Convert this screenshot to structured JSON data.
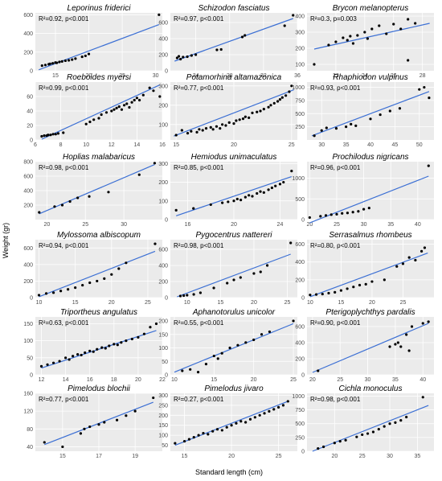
{
  "figure": {
    "xlabel": "Standard length (cm)",
    "ylabel": "Weight (gr)"
  },
  "colors": {
    "panel_bg": "#ebebeb",
    "grid": "#ffffff",
    "points": "#000000",
    "fit_line": "#3b6fd4"
  },
  "chart_data": [
    {
      "type": "scatter",
      "title": "Leporinus friderici",
      "stat": "R²=0.92, p<0.001",
      "xlim": [
        12,
        31
      ],
      "ylim": [
        0,
        620
      ],
      "xticks": [
        15,
        20,
        25,
        30
      ],
      "yticks": [
        0,
        200,
        400,
        600
      ],
      "x": [
        13,
        13.5,
        14,
        14.2,
        14.6,
        15,
        15.2,
        15.6,
        16,
        16.5,
        17,
        17.5,
        18,
        19,
        19.5,
        20,
        30.5
      ],
      "y": [
        55,
        62,
        70,
        75,
        80,
        88,
        85,
        95,
        100,
        108,
        112,
        120,
        130,
        150,
        160,
        180,
        600
      ],
      "fit": [
        [
          12.5,
          10
        ],
        [
          30.5,
          495
        ]
      ]
    },
    {
      "type": "scatter",
      "title": "Schizodon fasciatus",
      "stat": "R²=0.97, p<0.001",
      "xlim": [
        21,
        36
      ],
      "ylim": [
        0,
        720
      ],
      "xticks": [
        24,
        28,
        32,
        36
      ],
      "yticks": [
        0,
        200,
        400,
        600
      ],
      "x": [
        21.8,
        22,
        22.2,
        22.5,
        23,
        23.5,
        24,
        26.5,
        27,
        29.5,
        29.8,
        34.5,
        35.5
      ],
      "y": [
        160,
        180,
        145,
        170,
        175,
        190,
        200,
        260,
        265,
        420,
        440,
        560,
        690
      ],
      "fit": [
        [
          21.5,
          120
        ],
        [
          35.5,
          650
        ]
      ]
    },
    {
      "type": "scatter",
      "title": "Brycon melanopterus",
      "stat": "R²=0.3, p=0.003",
      "xlim": [
        20,
        28.8
      ],
      "ylim": [
        60,
        420
      ],
      "xticks": [
        22,
        24,
        26,
        28
      ],
      "yticks": [
        100,
        200,
        300,
        400
      ],
      "x": [
        20.5,
        21.5,
        22,
        22.5,
        22.8,
        23,
        23.2,
        23.5,
        24,
        24.2,
        24.5,
        25,
        25.5,
        26,
        26.5,
        27,
        27,
        27.5
      ],
      "y": [
        100,
        220,
        240,
        265,
        250,
        275,
        230,
        280,
        300,
        260,
        320,
        340,
        290,
        350,
        320,
        380,
        125,
        355
      ],
      "fit": [
        [
          20.5,
          195
        ],
        [
          28.5,
          355
        ]
      ]
    },
    {
      "type": "scatter",
      "title": "Roeboides myersi",
      "stat": "R²=0.99, p<0.001",
      "xlim": [
        6,
        16
      ],
      "ylim": [
        0,
        80
      ],
      "xticks": [
        6,
        8,
        10,
        12,
        14,
        16
      ],
      "yticks": [
        0,
        20,
        40,
        60
      ],
      "x": [
        6.5,
        6.7,
        6.9,
        7,
        7.2,
        7.4,
        7.6,
        7.8,
        8.2,
        10,
        10.3,
        10.6,
        11,
        11.2,
        11.6,
        12,
        12.2,
        12.4,
        12.6,
        12.8,
        13,
        13.2,
        13.4,
        13.6,
        13.8,
        14,
        14.2,
        14.5,
        15,
        15.3,
        15.8
      ],
      "y": [
        5,
        6,
        6,
        7,
        7,
        8,
        8,
        9,
        10,
        22,
        25,
        28,
        30,
        35,
        38,
        40,
        42,
        44,
        46,
        42,
        48,
        50,
        45,
        52,
        55,
        58,
        55,
        62,
        72,
        68,
        60
      ],
      "fit": [
        [
          6.5,
          1
        ],
        [
          15.8,
          76
        ]
      ]
    },
    {
      "type": "scatter",
      "title": "Potamorhina altamazonica",
      "stat": "R²=0.77, p<0.001",
      "xlim": [
        14.5,
        25.5
      ],
      "ylim": [
        20,
        320
      ],
      "xticks": [
        15,
        20,
        25
      ],
      "yticks": [
        100,
        200,
        300
      ],
      "x": [
        15,
        15.5,
        16,
        16.3,
        16.8,
        17,
        17.3,
        17.6,
        18,
        18.2,
        18.5,
        18.8,
        19,
        19.3,
        19.6,
        20,
        20.2,
        20.5,
        20.8,
        21,
        21.3,
        21.6,
        22,
        22.3,
        22.6,
        23,
        23.2,
        23.5,
        23.8,
        24,
        24.2,
        24.5,
        24.8,
        25
      ],
      "y": [
        45,
        70,
        55,
        65,
        60,
        75,
        70,
        80,
        85,
        75,
        90,
        80,
        100,
        95,
        110,
        105,
        120,
        125,
        130,
        140,
        135,
        160,
        165,
        170,
        180,
        190,
        200,
        210,
        220,
        230,
        240,
        250,
        270,
        300
      ],
      "fit": [
        [
          14.8,
          40
        ],
        [
          25.2,
          280
        ]
      ]
    },
    {
      "type": "scatter",
      "title": "Rhaphiodon vulpinus",
      "stat": "R²=0.93, p<0.001",
      "xlim": [
        27,
        53
      ],
      "ylim": [
        0,
        1100
      ],
      "xticks": [
        30,
        35,
        40,
        45,
        50
      ],
      "yticks": [
        250,
        500,
        750,
        1000
      ],
      "x": [
        28.5,
        30,
        31,
        33,
        35,
        36,
        37,
        40,
        42,
        44,
        46,
        50,
        51,
        52
      ],
      "y": [
        80,
        180,
        230,
        220,
        250,
        300,
        270,
        400,
        480,
        550,
        600,
        960,
        1000,
        800
      ],
      "fit": [
        [
          28,
          80
        ],
        [
          52,
          920
        ]
      ]
    },
    {
      "type": "scatter",
      "title": "Hoplias malabaricus",
      "stat": "R²=0.98, p<0.001",
      "xlim": [
        18.5,
        35
      ],
      "ylim": [
        0,
        800
      ],
      "xticks": [
        20,
        25,
        30
      ],
      "yticks": [
        200,
        400,
        600,
        800
      ],
      "x": [
        19,
        21,
        22,
        23,
        24,
        25.5,
        28,
        32,
        34
      ],
      "y": [
        100,
        180,
        200,
        250,
        300,
        320,
        380,
        620,
        780
      ],
      "fit": [
        [
          19,
          80
        ],
        [
          34,
          760
        ]
      ]
    },
    {
      "type": "scatter",
      "title": "Hemiodus unimaculatus",
      "stat": "R²=0.85, p<0.001",
      "xlim": [
        14.5,
        25.5
      ],
      "ylim": [
        0,
        310
      ],
      "xticks": [
        16,
        20,
        24
      ],
      "yticks": [
        0,
        100,
        200,
        300
      ],
      "x": [
        15,
        16.5,
        18,
        19,
        19.5,
        20,
        20.3,
        20.6,
        21,
        21.3,
        21.6,
        22,
        22.3,
        22.6,
        23,
        23.3,
        23.6,
        24,
        24.3,
        25
      ],
      "y": [
        50,
        60,
        80,
        90,
        95,
        100,
        110,
        105,
        120,
        130,
        125,
        140,
        150,
        145,
        160,
        170,
        180,
        190,
        200,
        260
      ],
      "fit": [
        [
          15,
          20
        ],
        [
          25,
          230
        ]
      ]
    },
    {
      "type": "scatter",
      "title": "Prochilodus nigricans",
      "stat": "R²=0.96, p<0.001",
      "xlim": [
        19.5,
        43
      ],
      "ylim": [
        0,
        1400
      ],
      "xticks": [
        20,
        25,
        30,
        35,
        40
      ],
      "yticks": [
        0,
        500,
        1000
      ],
      "x": [
        20,
        22,
        23,
        24,
        25,
        26,
        27,
        28,
        29,
        30,
        31,
        42
      ],
      "y": [
        50,
        80,
        100,
        120,
        130,
        150,
        160,
        180,
        200,
        250,
        280,
        1300
      ],
      "fit": [
        [
          20,
          -80
        ],
        [
          42,
          1050
        ]
      ]
    },
    {
      "type": "scatter",
      "title": "Mylossoma albiscopum",
      "stat": "R²=0.94, p<0.001",
      "xlim": [
        9.5,
        27
      ],
      "ylim": [
        0,
        700
      ],
      "xticks": [
        10,
        15,
        20,
        25
      ],
      "yticks": [
        0,
        200,
        400,
        600
      ],
      "x": [
        10,
        11,
        12,
        13,
        14,
        15,
        16,
        17,
        18,
        19,
        20,
        21,
        22,
        26
      ],
      "y": [
        30,
        50,
        60,
        80,
        100,
        120,
        150,
        180,
        200,
        230,
        280,
        350,
        420,
        650
      ],
      "fit": [
        [
          10,
          10
        ],
        [
          26,
          560
        ]
      ]
    },
    {
      "type": "scatter",
      "title": "Pygocentrus nattereri",
      "stat": "R²=0.98, p<0.001",
      "xlim": [
        7.5,
        26.5
      ],
      "ylim": [
        0,
        720
      ],
      "xticks": [
        10,
        15,
        20,
        25
      ],
      "yticks": [
        0,
        200,
        400,
        600
      ],
      "x": [
        9,
        9.5,
        10,
        11,
        12,
        14,
        16,
        17,
        18,
        20,
        21,
        22,
        25.5
      ],
      "y": [
        20,
        25,
        30,
        40,
        60,
        120,
        180,
        220,
        250,
        300,
        320,
        400,
        680
      ],
      "fit": [
        [
          8.5,
          10
        ],
        [
          25.5,
          540
        ]
      ]
    },
    {
      "type": "scatter",
      "title": "Serrasalmus rhombeus",
      "stat": "R²=0.80, p<0.001",
      "xlim": [
        9.5,
        30
      ],
      "ylim": [
        0,
        650
      ],
      "xticks": [
        10,
        15,
        20,
        25
      ],
      "yticks": [
        0,
        200,
        400,
        600
      ],
      "x": [
        10,
        11,
        12,
        13,
        14,
        15,
        16,
        17,
        18,
        19,
        20,
        22,
        24,
        25,
        26,
        27,
        28,
        28.5
      ],
      "y": [
        30,
        35,
        40,
        50,
        60,
        80,
        100,
        120,
        140,
        150,
        180,
        200,
        350,
        380,
        450,
        420,
        520,
        560
      ],
      "fit": [
        [
          10,
          10
        ],
        [
          29,
          500
        ]
      ]
    },
    {
      "type": "scatter",
      "title": "Triportheus angulatus",
      "stat": "R²=0.63, p<0.001",
      "xlim": [
        11.5,
        22
      ],
      "ylim": [
        0,
        170
      ],
      "xticks": [
        12,
        14,
        16,
        18,
        20,
        22
      ],
      "yticks": [
        0,
        50,
        100,
        150
      ],
      "x": [
        12,
        12.5,
        13,
        13.5,
        14,
        14.3,
        14.6,
        15,
        15.3,
        15.6,
        16,
        16.3,
        16.6,
        17,
        17.3,
        17.6,
        18,
        18.3,
        18.6,
        19,
        19.5,
        20,
        20.5,
        21,
        21.5
      ],
      "y": [
        25,
        30,
        35,
        40,
        50,
        45,
        55,
        60,
        58,
        65,
        70,
        68,
        75,
        80,
        78,
        85,
        90,
        88,
        95,
        100,
        105,
        110,
        120,
        140,
        150
      ],
      "fit": [
        [
          12,
          20
        ],
        [
          21.5,
          130
        ]
      ]
    },
    {
      "type": "scatter",
      "title": "Aphanotorulus unicolor",
      "stat": "R²=0.55, p<0.001",
      "xlim": [
        9.5,
        25.5
      ],
      "ylim": [
        0,
        215
      ],
      "xticks": [
        10,
        15,
        20,
        25
      ],
      "yticks": [
        0,
        50,
        100,
        150,
        200
      ],
      "x": [
        11,
        12,
        13,
        14,
        15,
        15.5,
        16,
        17,
        18,
        19,
        20,
        21,
        22,
        25
      ],
      "y": [
        15,
        20,
        10,
        40,
        70,
        60,
        80,
        100,
        110,
        120,
        130,
        150,
        160,
        200
      ],
      "fit": [
        [
          10,
          10
        ],
        [
          25,
          190
        ]
      ]
    },
    {
      "type": "scatter",
      "title": "Pterigoplychthys pardalis",
      "stat": "R²=0.90, p<0.001",
      "xlim": [
        19,
        42
      ],
      "ylim": [
        0,
        720
      ],
      "xticks": [
        20,
        25,
        30,
        35,
        40
      ],
      "yticks": [
        0,
        200,
        400,
        600
      ],
      "x": [
        21,
        34,
        35,
        35.5,
        36,
        37,
        37.5,
        38,
        40,
        41
      ],
      "y": [
        50,
        350,
        380,
        400,
        350,
        500,
        300,
        600,
        640,
        660
      ],
      "fit": [
        [
          20,
          30
        ],
        [
          41,
          640
        ]
      ]
    },
    {
      "type": "scatter",
      "title": "Pimelodus blochii",
      "stat": "R²=0.77, p<0.001",
      "xlim": [
        13.5,
        20.5
      ],
      "ylim": [
        30,
        160
      ],
      "xticks": [
        15,
        17,
        19
      ],
      "yticks": [
        40,
        80,
        120,
        160
      ],
      "x": [
        14,
        15,
        16,
        16.2,
        16.5,
        17,
        17.3,
        18,
        18.5,
        19,
        20
      ],
      "y": [
        50,
        40,
        70,
        80,
        85,
        90,
        95,
        100,
        110,
        120,
        150
      ],
      "fit": [
        [
          14,
          45
        ],
        [
          20,
          140
        ]
      ]
    },
    {
      "type": "scatter",
      "title": "Pimelodus jivaro",
      "stat": "R²=0.27, p<0.001",
      "xlim": [
        13.5,
        27
      ],
      "ylim": [
        20,
        310
      ],
      "xticks": [
        15,
        20,
        25
      ],
      "yticks": [
        50,
        100,
        150,
        200,
        250,
        300
      ],
      "x": [
        14,
        15,
        15.5,
        16,
        16.5,
        17,
        17.5,
        18,
        18.5,
        19,
        19.5,
        20,
        20.5,
        21,
        21.5,
        22,
        22.5,
        23,
        23.5,
        24,
        24.5,
        25,
        25.5,
        26
      ],
      "y": [
        60,
        70,
        80,
        90,
        100,
        110,
        105,
        120,
        130,
        125,
        140,
        150,
        160,
        170,
        165,
        180,
        190,
        200,
        210,
        220,
        230,
        240,
        250,
        270
      ],
      "fit": [
        [
          14,
          50
        ],
        [
          26,
          270
        ]
      ]
    },
    {
      "type": "scatter",
      "title": "Cichla monoculus",
      "stat": "R²=0.98, p<0.001",
      "xlim": [
        15,
        38
      ],
      "ylim": [
        0,
        1050
      ],
      "xticks": [
        20,
        25,
        30,
        35
      ],
      "yticks": [
        0,
        250,
        500,
        750,
        1000
      ],
      "x": [
        17,
        18,
        20,
        21,
        22,
        24,
        25,
        26,
        27,
        28,
        29,
        30,
        31,
        32,
        33,
        36
      ],
      "y": [
        50,
        80,
        150,
        180,
        200,
        260,
        300,
        320,
        350,
        400,
        450,
        500,
        520,
        560,
        620,
        980
      ],
      "fit": [
        [
          16,
          0
        ],
        [
          37,
          830
        ]
      ]
    }
  ]
}
